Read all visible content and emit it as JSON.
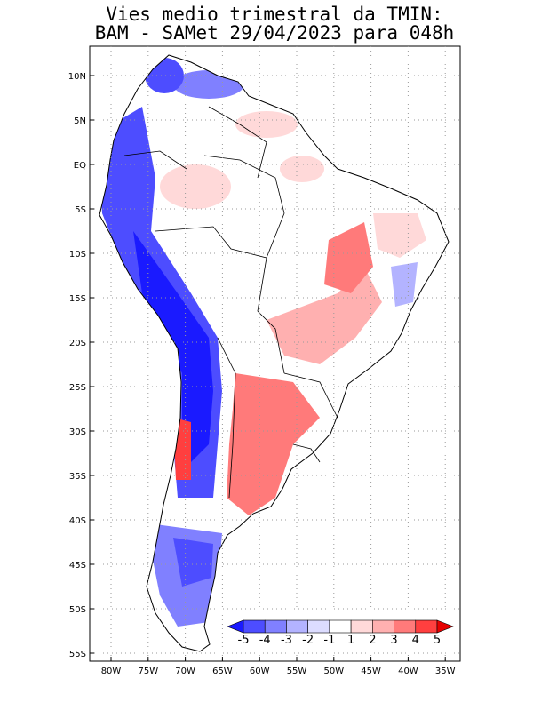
{
  "title": {
    "line1": "Vies medio trimestral da TMIN:",
    "line2": "BAM - SAMet 29/04/2023  para 048h"
  },
  "map": {
    "region": "South America",
    "lon_range": [
      -83,
      -34
    ],
    "lat_range": [
      -56,
      11
    ],
    "grid": "dotted",
    "lon_ticks": [
      "80W",
      "75W",
      "70W",
      "65W",
      "60W",
      "55W",
      "50W",
      "45W",
      "40W",
      "35W"
    ],
    "lat_ticks": [
      "10N",
      "5N",
      "EQ",
      "5S",
      "10S",
      "15S",
      "20S",
      "25S",
      "30S",
      "35S",
      "40S",
      "45S",
      "50S",
      "55S"
    ]
  },
  "colorbar": {
    "labels": [
      "-5",
      "-4",
      "-3",
      "-2",
      "-1",
      "1",
      "2",
      "3",
      "4",
      "5"
    ],
    "colors": [
      "#1a1aff",
      "#4d4dff",
      "#8080ff",
      "#b3b3ff",
      "#dcdcff",
      "#ffffff",
      "#ffd9d9",
      "#ffb0b0",
      "#ff7a7a",
      "#ff3f3f",
      "#e60000"
    ],
    "placement": "bottom-right inset"
  }
}
